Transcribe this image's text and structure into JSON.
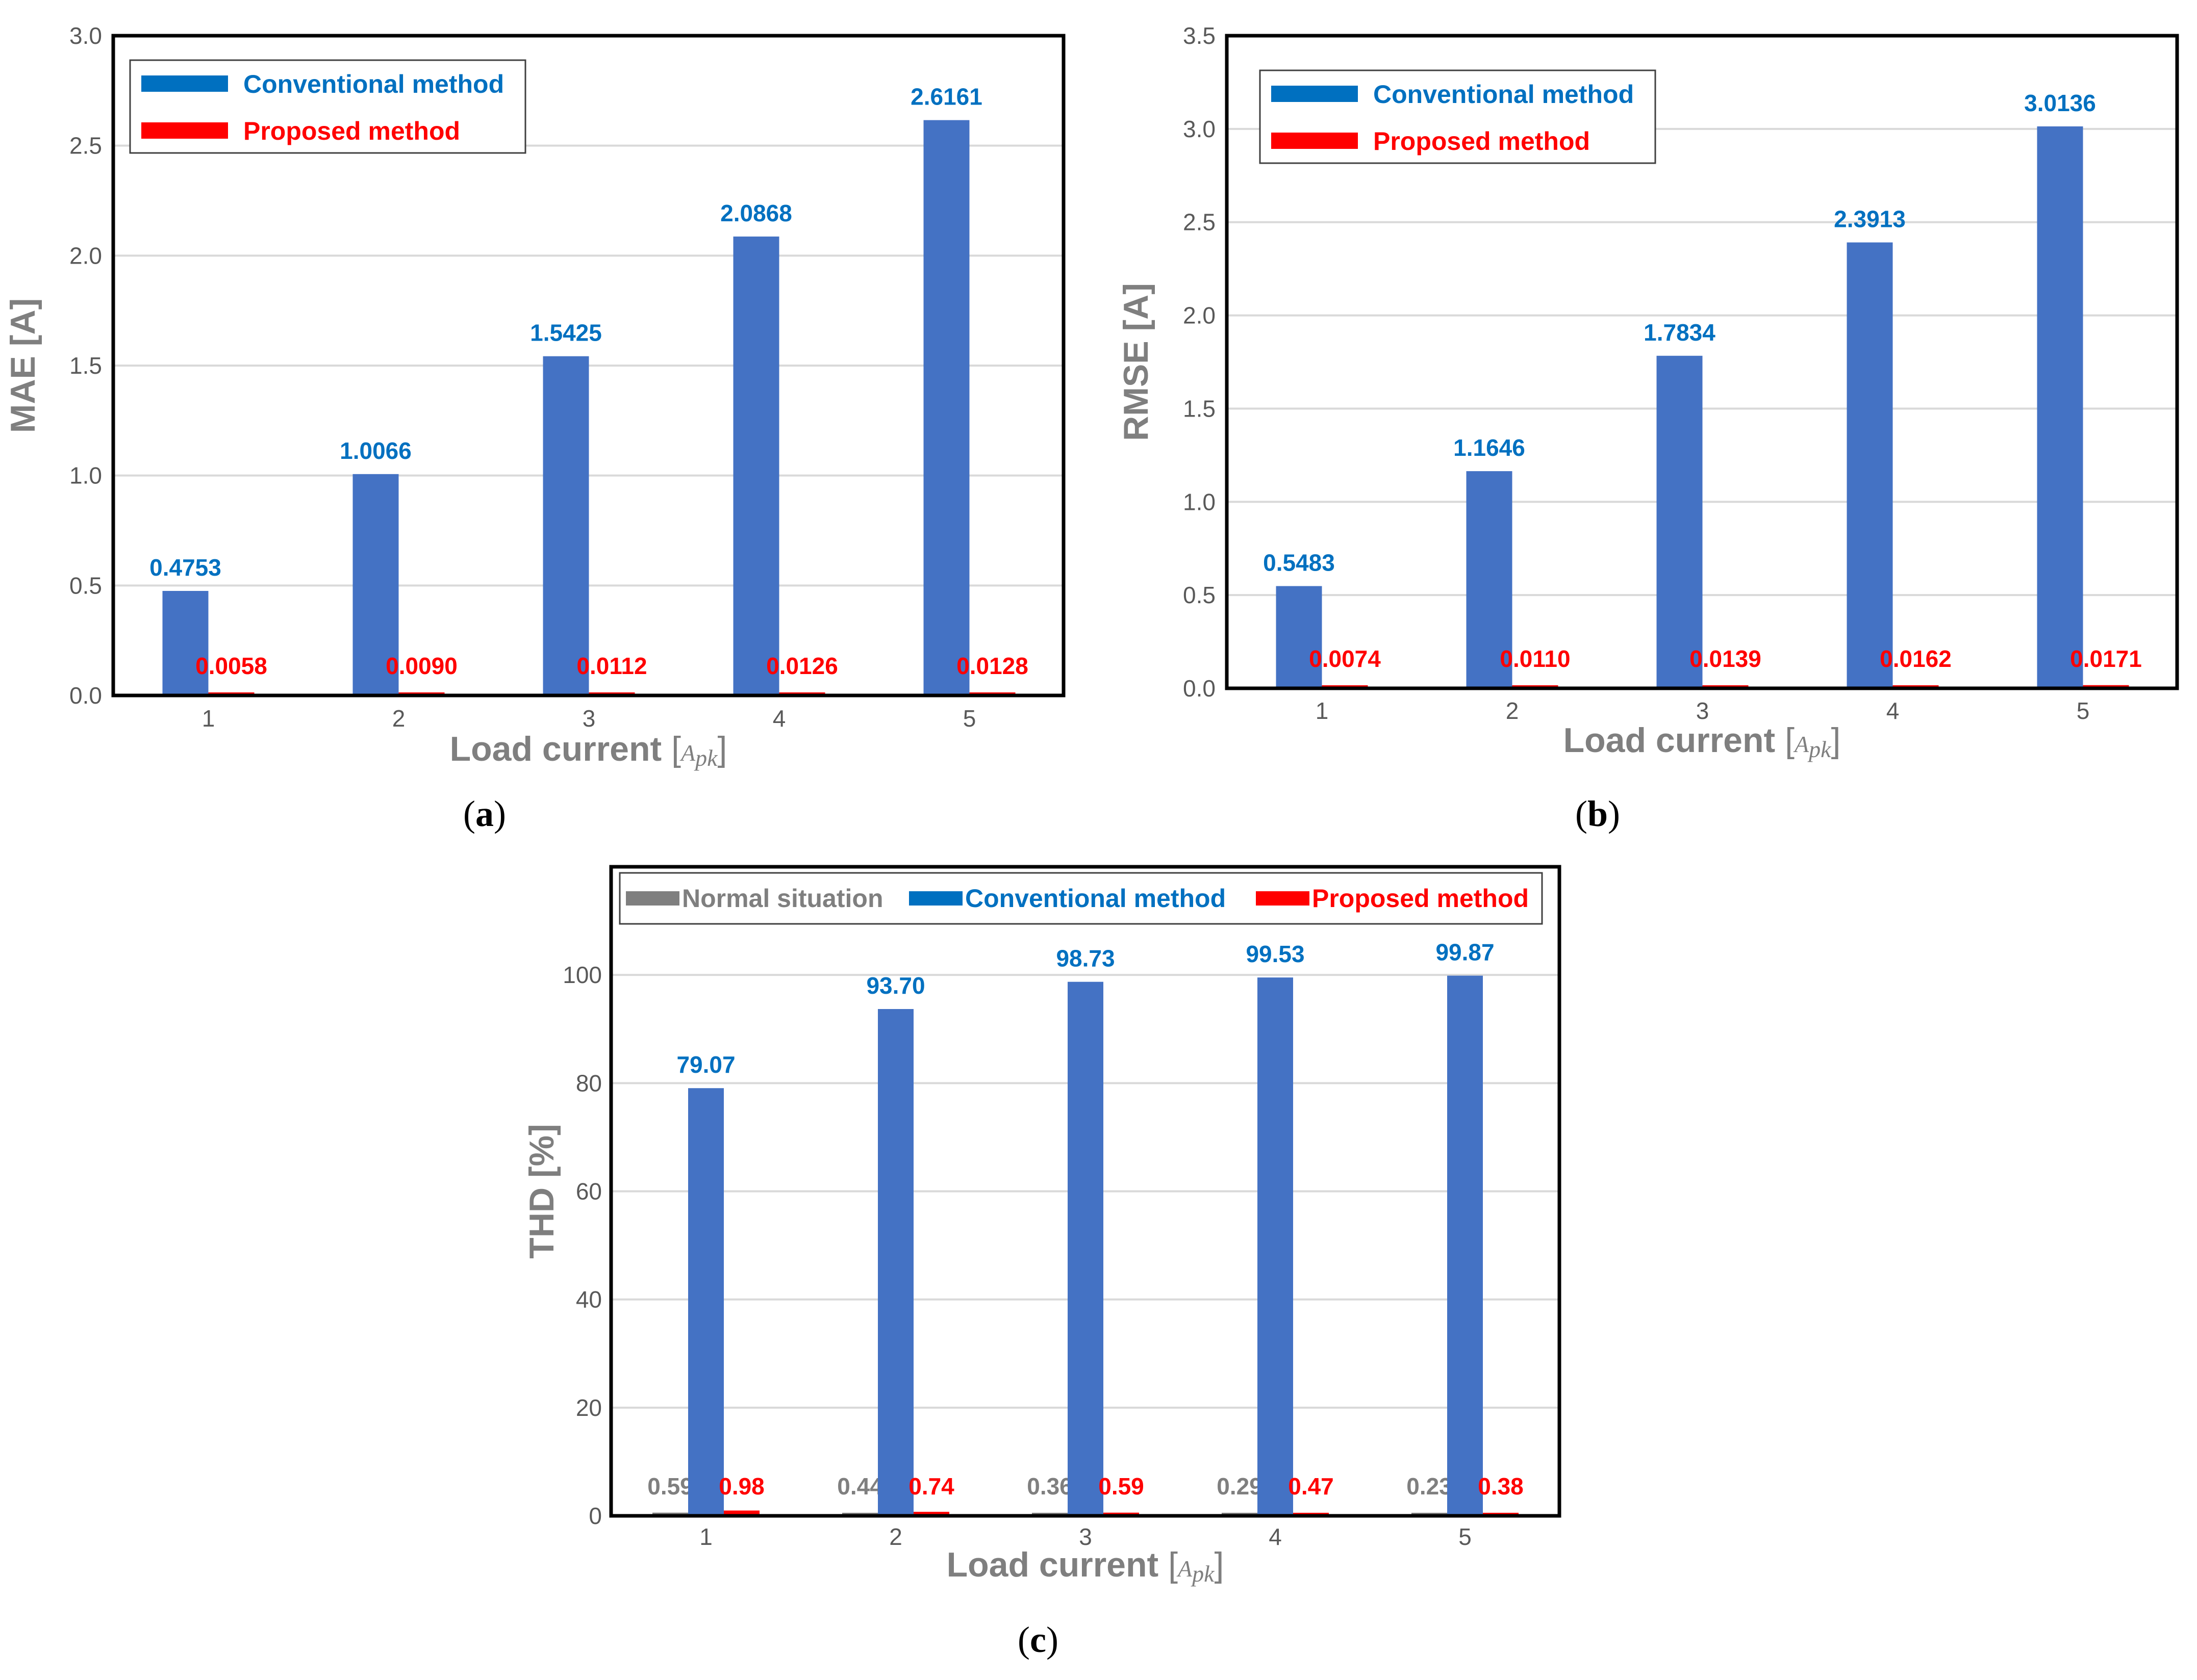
{
  "colors": {
    "conventional": "#4472c4",
    "conventional_legend": "#0070c0",
    "conventional_label": "#0070c0",
    "proposed": "#ff0000",
    "normal": "#7f7f7f",
    "grid": "#d9d9d9",
    "axis_text": "#595959"
  },
  "chart_data": [
    {
      "id": "a",
      "panel_label": "a",
      "type": "bar",
      "title": "",
      "xlabel": "Load current",
      "xunit": "A",
      "xunit_sub": "pk",
      "ylabel": "MAE [A]",
      "ylim": [
        0,
        3.0
      ],
      "ytick_step": 0.5,
      "ytick_decimals": 1,
      "grid": true,
      "legend_position": "top-left",
      "categories": [
        "1",
        "2",
        "3",
        "4",
        "5"
      ],
      "series": [
        {
          "name": "Conventional method",
          "key": "conventional",
          "values": [
            0.4753,
            1.0066,
            1.5425,
            2.0868,
            2.6161
          ],
          "labels": [
            "0.4753",
            "1.0066",
            "1.5425",
            "2.0868",
            "2.6161"
          ]
        },
        {
          "name": "Proposed method",
          "key": "proposed",
          "values": [
            0.0058,
            0.009,
            0.0112,
            0.0126,
            0.0128
          ],
          "labels": [
            "0.0058",
            "0.0090",
            "0.0112",
            "0.0126",
            "0.0128"
          ]
        }
      ]
    },
    {
      "id": "b",
      "panel_label": "b",
      "type": "bar",
      "title": "",
      "xlabel": "Load current",
      "xunit": "A",
      "xunit_sub": "pk",
      "ylabel": "RMSE [A]",
      "ylim": [
        0,
        3.5
      ],
      "ytick_step": 0.5,
      "ytick_decimals": 1,
      "grid": true,
      "legend_position": "top-left",
      "categories": [
        "1",
        "2",
        "3",
        "4",
        "5"
      ],
      "series": [
        {
          "name": "Conventional method",
          "key": "conventional",
          "values": [
            0.5483,
            1.1646,
            1.7834,
            2.3913,
            3.0136
          ],
          "labels": [
            "0.5483",
            "1.1646",
            "1.7834",
            "2.3913",
            "3.0136"
          ]
        },
        {
          "name": "Proposed method",
          "key": "proposed",
          "values": [
            0.0074,
            0.011,
            0.0139,
            0.0162,
            0.0171
          ],
          "labels": [
            "0.0074",
            "0.0110",
            "0.0139",
            "0.0162",
            "0.0171"
          ]
        }
      ]
    },
    {
      "id": "c",
      "panel_label": "c",
      "type": "bar",
      "title": "",
      "xlabel": "Load current",
      "xunit": "A",
      "xunit_sub": "pk",
      "ylabel": "THD [%]",
      "ylim": [
        0,
        120
      ],
      "ytick_step": 20,
      "ytick_max": 100,
      "ytick_decimals": 0,
      "grid": true,
      "legend_position": "top",
      "categories": [
        "1",
        "2",
        "3",
        "4",
        "5"
      ],
      "series": [
        {
          "name": "Normal situation",
          "key": "normal",
          "values": [
            0.59,
            0.44,
            0.36,
            0.29,
            0.23
          ],
          "labels": [
            "0.59",
            "0.44",
            "0.36",
            "0.29",
            "0.23"
          ]
        },
        {
          "name": "Conventional method",
          "key": "conventional",
          "values": [
            79.07,
            93.7,
            98.73,
            99.53,
            99.87
          ],
          "labels": [
            "79.07",
            "93.70",
            "98.73",
            "99.53",
            "99.87"
          ]
        },
        {
          "name": "Proposed method",
          "key": "proposed",
          "values": [
            0.98,
            0.74,
            0.59,
            0.47,
            0.38
          ],
          "labels": [
            "0.98",
            "0.74",
            "0.59",
            "0.47",
            "0.38"
          ]
        }
      ]
    }
  ]
}
